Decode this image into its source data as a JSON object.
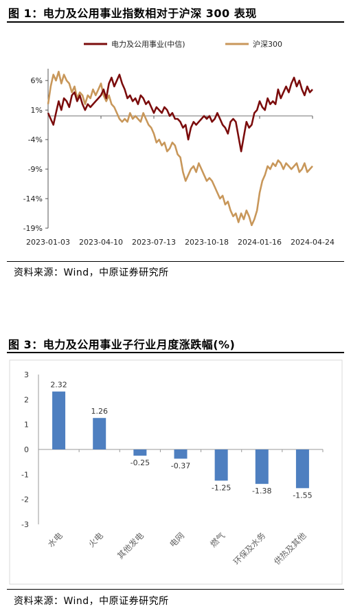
{
  "figure1": {
    "title": "图 1：电力及公用事业指数相对于沪深 300 表现",
    "source": "资料来源：Wind，中原证券研究所"
  },
  "figure3": {
    "title": "图 3：电力及公用事业子行业月度涨跌幅(%)",
    "source": "资料来源：Wind，中原证券研究所"
  },
  "chart_data": [
    {
      "type": "line",
      "title": "",
      "legend_position": "top-right",
      "ylim": [
        -19,
        8
      ],
      "y_ticks": [
        "6%",
        "1%",
        "-4%",
        "-9%",
        "-14%",
        "-19%"
      ],
      "y_tick_values": [
        6,
        1,
        -4,
        -9,
        -14,
        -19
      ],
      "x_ticks": [
        "2023-01-03",
        "2023-04-10",
        "2023-07-13",
        "2023-10-18",
        "2024-01-16",
        "2024-04-24"
      ],
      "x_tick_positions": [
        0,
        0.2,
        0.4,
        0.6,
        0.8,
        1.0
      ],
      "series": [
        {
          "name": "电力及公用事业(中信)",
          "color": "#7b0c0c",
          "x": [
            0,
            0.01,
            0.02,
            0.03,
            0.04,
            0.05,
            0.06,
            0.07,
            0.08,
            0.09,
            0.1,
            0.11,
            0.12,
            0.13,
            0.14,
            0.15,
            0.16,
            0.17,
            0.18,
            0.19,
            0.2,
            0.21,
            0.22,
            0.23,
            0.24,
            0.25,
            0.26,
            0.27,
            0.28,
            0.29,
            0.3,
            0.31,
            0.32,
            0.33,
            0.34,
            0.35,
            0.36,
            0.37,
            0.38,
            0.39,
            0.4,
            0.41,
            0.42,
            0.43,
            0.44,
            0.45,
            0.46,
            0.47,
            0.48,
            0.49,
            0.5,
            0.51,
            0.52,
            0.53,
            0.54,
            0.55,
            0.56,
            0.57,
            0.58,
            0.59,
            0.6,
            0.61,
            0.62,
            0.63,
            0.64,
            0.65,
            0.66,
            0.67,
            0.68,
            0.69,
            0.7,
            0.71,
            0.72,
            0.73,
            0.74,
            0.75,
            0.76,
            0.77,
            0.78,
            0.79,
            0.8,
            0.81,
            0.82,
            0.83,
            0.84,
            0.85,
            0.86,
            0.87,
            0.88,
            0.89,
            0.9,
            0.91,
            0.92,
            0.93,
            0.94,
            0.95,
            0.96,
            0.97,
            0.98,
            0.99,
            1.0
          ],
          "values": [
            0.5,
            -0.5,
            -1.5,
            0.5,
            2.5,
            1.0,
            3.0,
            2.5,
            1.5,
            3.5,
            4.0,
            2.5,
            3.5,
            2.0,
            1.0,
            2.0,
            1.5,
            2.0,
            2.5,
            3.0,
            3.5,
            4.5,
            3.0,
            5.5,
            6.5,
            5.0,
            6.0,
            7.0,
            5.5,
            4.5,
            3.0,
            3.5,
            2.5,
            3.0,
            2.0,
            3.5,
            3.0,
            2.0,
            2.5,
            1.5,
            0.5,
            1.5,
            1.0,
            0.5,
            1.5,
            1.0,
            0.0,
            0.5,
            -0.5,
            -0.5,
            -1.0,
            -2.0,
            -1.5,
            -4.0,
            -2.0,
            -1.0,
            -1.5,
            -1.0,
            -0.5,
            0.0,
            -0.5,
            0.0,
            -1.0,
            -0.5,
            0.5,
            -0.5,
            -1.5,
            -2.0,
            -3.0,
            -1.0,
            -0.5,
            -1.0,
            -3.5,
            -6.0,
            -3.5,
            -1.0,
            -2.0,
            -1.5,
            0.5,
            1.0,
            2.5,
            1.5,
            1.0,
            3.0,
            2.0,
            2.5,
            2.0,
            4.5,
            3.0,
            4.0,
            5.0,
            4.0,
            5.5,
            6.5,
            5.0,
            6.0,
            4.5,
            3.5,
            5.0,
            4.0,
            4.5
          ]
        },
        {
          "name": "沪深300",
          "color": "#c8975a",
          "x": [
            0,
            0.01,
            0.02,
            0.03,
            0.04,
            0.05,
            0.06,
            0.07,
            0.08,
            0.09,
            0.1,
            0.11,
            0.12,
            0.13,
            0.14,
            0.15,
            0.16,
            0.17,
            0.18,
            0.19,
            0.2,
            0.21,
            0.22,
            0.23,
            0.24,
            0.25,
            0.26,
            0.27,
            0.28,
            0.29,
            0.3,
            0.31,
            0.32,
            0.33,
            0.34,
            0.35,
            0.36,
            0.37,
            0.38,
            0.39,
            0.4,
            0.41,
            0.42,
            0.43,
            0.44,
            0.45,
            0.46,
            0.47,
            0.48,
            0.49,
            0.5,
            0.51,
            0.52,
            0.53,
            0.54,
            0.55,
            0.56,
            0.57,
            0.58,
            0.59,
            0.6,
            0.61,
            0.62,
            0.63,
            0.64,
            0.65,
            0.66,
            0.67,
            0.68,
            0.69,
            0.7,
            0.71,
            0.72,
            0.73,
            0.74,
            0.75,
            0.76,
            0.77,
            0.78,
            0.79,
            0.8,
            0.81,
            0.82,
            0.83,
            0.84,
            0.85,
            0.86,
            0.87,
            0.88,
            0.89,
            0.9,
            0.91,
            0.92,
            0.93,
            0.94,
            0.95,
            0.96,
            0.97,
            0.98,
            0.99,
            1.0
          ],
          "values": [
            2.0,
            5.0,
            7.0,
            6.0,
            7.5,
            5.5,
            7.0,
            6.0,
            5.5,
            4.0,
            5.0,
            3.0,
            4.0,
            3.5,
            2.0,
            3.5,
            3.0,
            4.5,
            3.5,
            4.5,
            5.5,
            3.5,
            2.5,
            3.5,
            2.0,
            1.5,
            0.5,
            -0.5,
            -1.0,
            -0.5,
            -1.0,
            0.5,
            -0.5,
            0.0,
            -0.5,
            -1.0,
            0.5,
            -0.5,
            -1.5,
            -2.0,
            -3.0,
            -4.5,
            -4.0,
            -5.0,
            -4.5,
            -6.0,
            -5.5,
            -4.5,
            -5.0,
            -6.5,
            -7.0,
            -9.5,
            -11.0,
            -10.0,
            -9.0,
            -8.5,
            -9.5,
            -8.0,
            -9.0,
            -10.0,
            -11.0,
            -10.5,
            -11.0,
            -12.0,
            -13.0,
            -14.0,
            -13.5,
            -15.0,
            -14.5,
            -16.0,
            -17.0,
            -16.5,
            -18.0,
            -16.5,
            -17.5,
            -16.0,
            -17.0,
            -18.5,
            -17.5,
            -16.0,
            -13.0,
            -11.0,
            -10.0,
            -8.5,
            -9.0,
            -8.0,
            -8.5,
            -7.5,
            -8.0,
            -9.0,
            -8.0,
            -8.5,
            -9.0,
            -8.5,
            -8.0,
            -9.5,
            -9.0,
            -8.0,
            -9.5,
            -9.0,
            -8.5
          ]
        }
      ]
    },
    {
      "type": "bar",
      "title": "",
      "xlabel": "",
      "ylabel": "",
      "ylim": [
        -3,
        3
      ],
      "y_ticks": [
        "3",
        "2",
        "1",
        "0",
        "-1",
        "-2",
        "-3"
      ],
      "y_tick_values": [
        3,
        2,
        1,
        0,
        -1,
        -2,
        -3
      ],
      "color": "#4e7fc0",
      "categories": [
        "水电",
        "火电",
        "其他发电",
        "电网",
        "燃气",
        "环保及水务",
        "供热及其他"
      ],
      "values": [
        2.32,
        1.26,
        -0.25,
        -0.37,
        -1.25,
        -1.38,
        -1.55
      ],
      "value_labels": [
        "2.32",
        "1.26",
        "-0.25",
        "-0.37",
        "-1.25",
        "-1.38",
        "-1.55"
      ]
    }
  ]
}
